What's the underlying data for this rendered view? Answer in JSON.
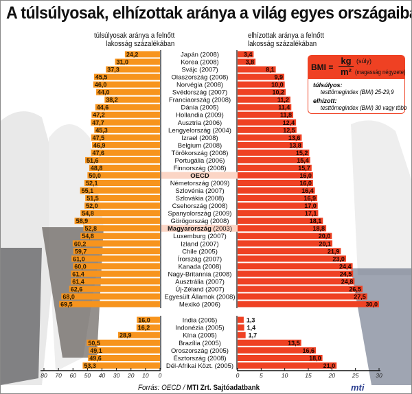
{
  "title": "A túlsúlyosak, elhízottak aránya a világ egyes országaiban",
  "chart_data": {
    "type": "bar",
    "orientation": "horizontal-butterfly",
    "left_label": "túlsúlyosak aránya a felnőtt lakosság százalékában",
    "right_label": "elhízottak aránya a felnőtt lakosság százalékában",
    "left_series": {
      "label_line1": "túlsúlyosak aránya a felnőtt",
      "label_line2": "lakosság százalékában",
      "color": "#f7941d",
      "xlim": [
        0,
        80
      ],
      "ticks": [
        "80",
        "70",
        "60",
        "50",
        "40",
        "30",
        "20",
        "10",
        "0"
      ]
    },
    "right_series": {
      "label_line1": "elhízottak aránya a felnőtt",
      "label_line2": "lakosság százalékában",
      "color": "#ef4123",
      "xlim": [
        0,
        30
      ],
      "ticks": [
        "0",
        "5",
        "10",
        "15",
        "20",
        "25",
        "30"
      ]
    },
    "highlight_color": "#fbd5c5",
    "groups": [
      {
        "rows": [
          {
            "country": "Japán (2008)",
            "overweight": "24,2",
            "obese": "3,4"
          },
          {
            "country": "Korea (2008)",
            "overweight": "31,0",
            "obese": "3,8"
          },
          {
            "country": "Svájc (2007)",
            "overweight": "37,3",
            "obese": "8,1"
          },
          {
            "country": "Olaszország (2008)",
            "overweight": "45,5",
            "obese": "9,9"
          },
          {
            "country": "Norvégia (2008)",
            "overweight": "46,0",
            "obese": "10,0"
          },
          {
            "country": "Svédország (2007)",
            "overweight": "44,0",
            "obese": "10,2"
          },
          {
            "country": "Franciaország (2008)",
            "overweight": "38,2",
            "obese": "11,2"
          },
          {
            "country": "Dánia (2005)",
            "overweight": "44,6",
            "obese": "11,4"
          },
          {
            "country": "Hollandia (2009)",
            "overweight": "47,2",
            "obese": "11,8"
          },
          {
            "country": "Ausztria (2006)",
            "overweight": "47,7",
            "obese": "12,4"
          },
          {
            "country": "Lengyelország (2004)",
            "overweight": "45,3",
            "obese": "12,5"
          },
          {
            "country": "Izrael (2008)",
            "overweight": "47,5",
            "obese": "13,6"
          },
          {
            "country": "Belgium (2008)",
            "overweight": "46,9",
            "obese": "13,8"
          },
          {
            "country": "Törökország (2008)",
            "overweight": "47,6",
            "obese": "15,2"
          },
          {
            "country": "Portugália (2006)",
            "overweight": "51,6",
            "obese": "15,4"
          },
          {
            "country": "Finnország (2008)",
            "overweight": "48,8",
            "obese": "15,7"
          },
          {
            "country": "OECD",
            "overweight": "50,0",
            "obese": "16,0",
            "highlight": true,
            "bold": "OECD",
            "rest": ""
          },
          {
            "country": "Németország (2009)",
            "overweight": "52,1",
            "obese": "16,0"
          },
          {
            "country": "Szlovénia (2007)",
            "overweight": "55,1",
            "obese": "16,4"
          },
          {
            "country": "Szlovákia (2008)",
            "overweight": "51,5",
            "obese": "16,9"
          },
          {
            "country": "Csehország (2008)",
            "overweight": "52,0",
            "obese": "17,0"
          },
          {
            "country": "Spanyolország (2009)",
            "overweight": "54,8",
            "obese": "17,1"
          },
          {
            "country": "Görögország (2008)",
            "overweight": "58,9",
            "obese": "18,1"
          },
          {
            "country": "Magyarország (2003)",
            "overweight": "52,8",
            "obese": "18,8",
            "highlight": true,
            "bold": "Magyarország",
            "rest": " (2003)"
          },
          {
            "country": "Luxemburg (2007)",
            "overweight": "54,8",
            "obese": "20,0"
          },
          {
            "country": "Izland (2007)",
            "overweight": "60,2",
            "obese": "20,1"
          },
          {
            "country": "Chile (2005)",
            "overweight": "59,7",
            "obese": "21,9"
          },
          {
            "country": "Írország (2007)",
            "overweight": "61,0",
            "obese": "23,0"
          },
          {
            "country": "Kanada (2008)",
            "overweight": "60,0",
            "obese": "24,4"
          },
          {
            "country": "Nagy-Britannia (2008)",
            "overweight": "61,4",
            "obese": "24,5"
          },
          {
            "country": "Ausztrália (2007)",
            "overweight": "61,4",
            "obese": "24,8"
          },
          {
            "country": "Új-Zéland (2007)",
            "overweight": "62,6",
            "obese": "26,5"
          },
          {
            "country": "Egyesült Államok (2008)",
            "overweight": "68,0",
            "obese": "27,5"
          },
          {
            "country": "Mexikó (2006)",
            "overweight": "69,5",
            "obese": "30,0"
          }
        ]
      },
      {
        "rows": [
          {
            "country": "India (2005)",
            "overweight": "16,0",
            "obese": "1,3"
          },
          {
            "country": "Indonézia (2005)",
            "overweight": "16,2",
            "obese": "1,4"
          },
          {
            "country": "Kína (2005)",
            "overweight": "28,9",
            "obese": "1,7"
          },
          {
            "country": "Brazília (2005)",
            "overweight": "50,5",
            "obese": "13,5"
          },
          {
            "country": "Oroszország (2005)",
            "overweight": "49,1",
            "obese": "16,6"
          },
          {
            "country": "Észtország (2008)",
            "overweight": "49,6",
            "obese": "18,0"
          },
          {
            "country": "Dél-Afrikai Közt. (2005)",
            "overweight": "53,3",
            "obese": "21,0"
          }
        ]
      }
    ]
  },
  "bmi_box": {
    "lhs": "BMI =",
    "numerator": "kg",
    "denominator": "m²",
    "numerator_note": "(súly)",
    "denominator_note": "(magasság négyzete)",
    "overweight_label": "túlsúlyos:",
    "overweight_def": "testtömegindex (BMI) 25-29,9",
    "obese_label": "elhízott:",
    "obese_def": "testtömegindex (BMI) 30 vagy több"
  },
  "source": {
    "prefix": "Forrás: OECD / ",
    "bold": "MTI Zrt. Sajtóadatbank"
  },
  "logo": "mti"
}
